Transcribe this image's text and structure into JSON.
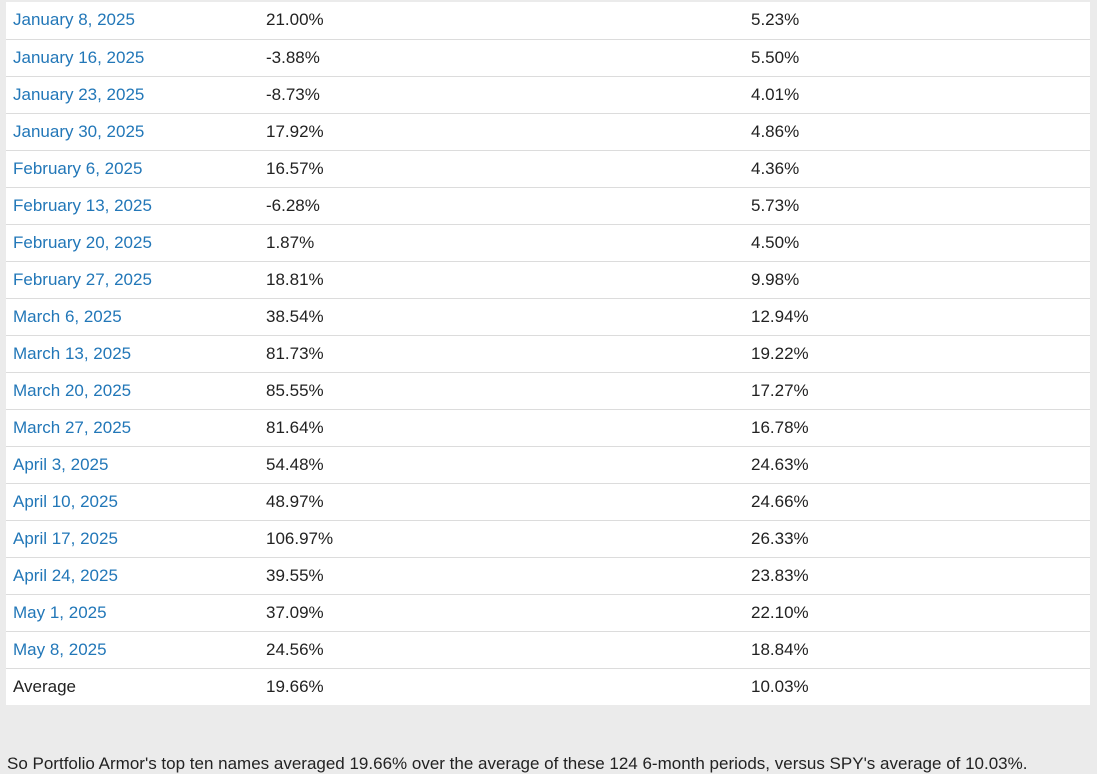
{
  "table": {
    "rows": [
      {
        "date": "January 8, 2025",
        "top_ten": "21.00%",
        "spy": "5.23%"
      },
      {
        "date": "January 16, 2025",
        "top_ten": "-3.88%",
        "spy": "5.50%"
      },
      {
        "date": "January 23, 2025",
        "top_ten": "-8.73%",
        "spy": "4.01%"
      },
      {
        "date": "January 30, 2025",
        "top_ten": "17.92%",
        "spy": "4.86%"
      },
      {
        "date": "February 6, 2025",
        "top_ten": "16.57%",
        "spy": "4.36%"
      },
      {
        "date": "February 13, 2025",
        "top_ten": "-6.28%",
        "spy": "5.73%"
      },
      {
        "date": "February 20, 2025",
        "top_ten": "1.87%",
        "spy": "4.50%"
      },
      {
        "date": "February 27, 2025",
        "top_ten": "18.81%",
        "spy": "9.98%"
      },
      {
        "date": "March 6, 2025",
        "top_ten": "38.54%",
        "spy": "12.94%"
      },
      {
        "date": "March 13, 2025",
        "top_ten": "81.73%",
        "spy": "19.22%"
      },
      {
        "date": "March 20, 2025",
        "top_ten": "85.55%",
        "spy": "17.27%"
      },
      {
        "date": "March 27, 2025",
        "top_ten": "81.64%",
        "spy": "16.78%"
      },
      {
        "date": "April 3, 2025",
        "top_ten": "54.48%",
        "spy": "24.63%"
      },
      {
        "date": "April 10, 2025",
        "top_ten": "48.97%",
        "spy": "24.66%"
      },
      {
        "date": "April 17, 2025",
        "top_ten": "106.97%",
        "spy": "26.33%"
      },
      {
        "date": "April 24, 2025",
        "top_ten": "39.55%",
        "spy": "23.83%"
      },
      {
        "date": "May 1, 2025",
        "top_ten": "37.09%",
        "spy": "22.10%"
      },
      {
        "date": "May 8, 2025",
        "top_ten": "24.56%",
        "spy": "18.84%"
      }
    ],
    "average": {
      "label": "Average",
      "top_ten": "19.66%",
      "spy": "10.03%"
    }
  },
  "summary": "So Portfolio Armor's top ten names averaged 19.66% over the average of these 124 6-month periods, versus SPY's average of 10.03%.",
  "colors": {
    "link": "#2277b8",
    "text": "#222222",
    "page_background": "#ebebeb",
    "table_background": "#ffffff",
    "row_divider": "#dcdcdc"
  }
}
